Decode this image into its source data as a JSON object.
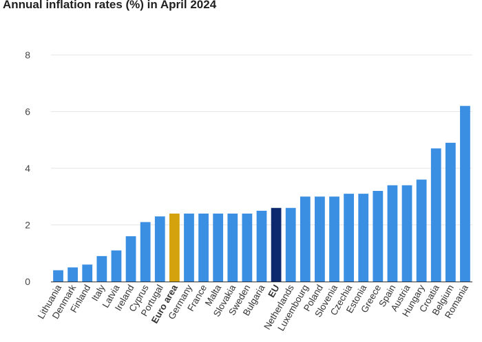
{
  "chart_data": {
    "type": "bar",
    "title": "Annual inflation rates (%) in April 2024",
    "xlabel": "",
    "ylabel": "",
    "ylim": [
      0,
      8
    ],
    "yticks": [
      0,
      2,
      4,
      6,
      8
    ],
    "grid": true,
    "categories": [
      "Lithuania",
      "Denmark",
      "Finland",
      "Italy",
      "Latvia",
      "Ireland",
      "Cyprus",
      "Portugal",
      "Euro area",
      "Germany",
      "France",
      "Malta",
      "Slovakia",
      "Sweden",
      "Bulgaria",
      "EU",
      "Netherlands",
      "Luxembourg",
      "Poland",
      "Slovenia",
      "Czechia",
      "Estonia",
      "Greece",
      "Spain",
      "Austria",
      "Hungary",
      "Croatia",
      "Belgium",
      "Romania"
    ],
    "values": [
      0.4,
      0.5,
      0.6,
      0.9,
      1.1,
      1.6,
      2.1,
      2.3,
      2.4,
      2.4,
      2.4,
      2.4,
      2.4,
      2.4,
      2.5,
      2.6,
      2.6,
      3.0,
      3.0,
      3.0,
      3.1,
      3.1,
      3.2,
      3.4,
      3.4,
      3.6,
      4.7,
      4.9,
      6.2
    ],
    "highlights": {
      "Euro area": "#d4a20c",
      "EU": "#0d2a6e"
    },
    "bold_categories": [
      "Euro area",
      "EU"
    ],
    "colors": {
      "default_bar": "#3a8fe3",
      "grid": "#e6e6e6",
      "axis": "#333333",
      "text": "#333333"
    }
  }
}
